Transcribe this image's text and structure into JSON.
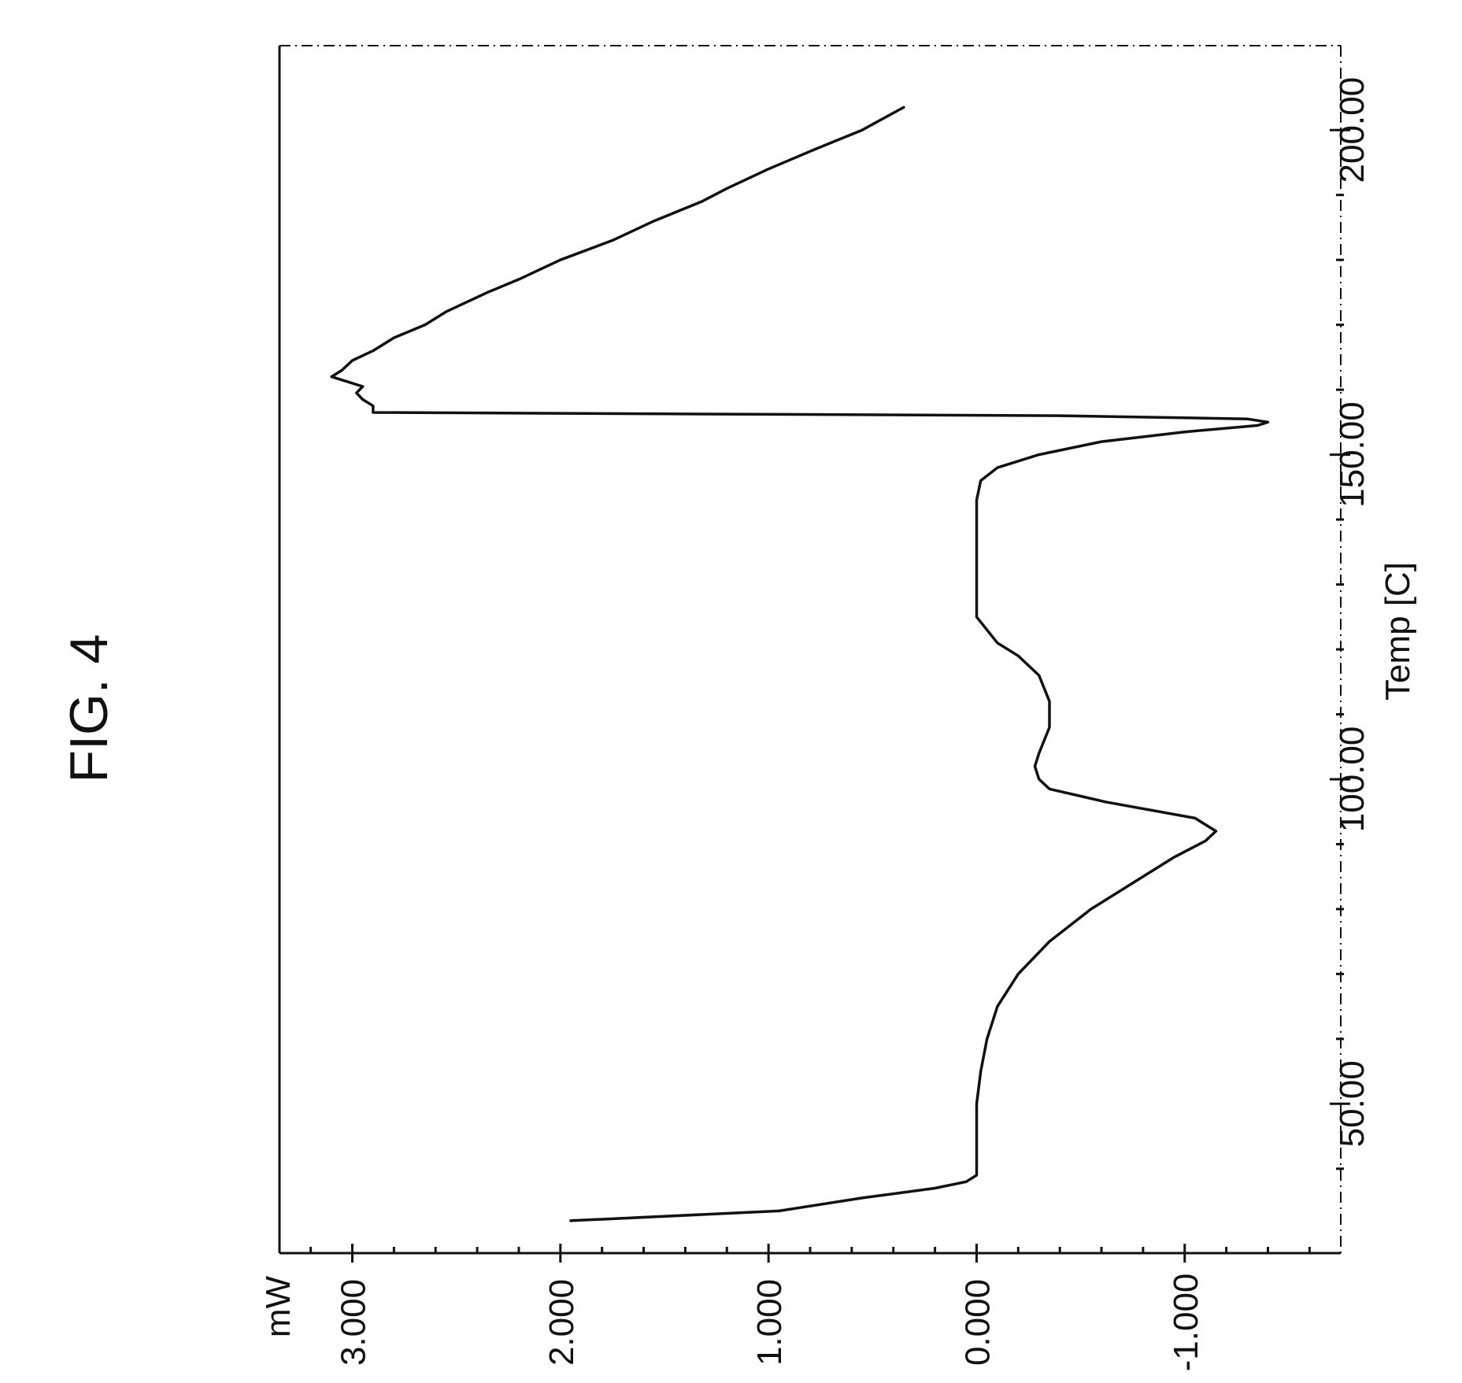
{
  "figure_label": "FIG. 4",
  "chart_data": {
    "type": "line",
    "title": "",
    "xlabel": "Temp [C]",
    "ylabel": "mW",
    "xlim": [
      27,
      213
    ],
    "ylim": [
      -1.75,
      3.35
    ],
    "x_ticks": [
      50,
      100,
      150,
      200
    ],
    "x_tick_labels": [
      "50.00",
      "100.00",
      "150.00",
      "200.00"
    ],
    "x_minor_ticks": [
      40,
      60,
      70,
      80,
      90,
      110,
      120,
      130,
      140,
      160,
      170,
      180,
      190
    ],
    "y_ticks": [
      3,
      2,
      1,
      0,
      -1
    ],
    "y_tick_labels": [
      "3.000",
      "2.000",
      "1.000",
      "0.000",
      "-1.000"
    ],
    "y_minor_ticks": [
      3.2,
      2.8,
      2.6,
      2.4,
      2.2,
      1.8,
      1.6,
      1.4,
      1.2,
      0.8,
      0.6,
      0.4,
      0.2,
      -0.2,
      -0.4,
      -0.6,
      -0.8,
      -1.2,
      -1.4,
      -1.6
    ],
    "grid": false,
    "legend": "none",
    "series": [
      {
        "name": "",
        "x": [
          32.0,
          33.5,
          35.5,
          37.0,
          38.0,
          39.0,
          45.0,
          50.0,
          55.0,
          60.0,
          65.0,
          70.0,
          75.0,
          80.0,
          84.0,
          88.0,
          90.5,
          92.0,
          94.0,
          96.5,
          98.5,
          100.0,
          102.0,
          104.0,
          108.0,
          112.0,
          116.0,
          119.0,
          121.0,
          123.0,
          125.0,
          127.0,
          132.0,
          138.0,
          143.0,
          146.0,
          148.0,
          150.0,
          152.0,
          153.5,
          154.5,
          155.0,
          155.5,
          156.0,
          156.5,
          157.5,
          158.5,
          159.5,
          160.5,
          162.0,
          163.0,
          164.5,
          166.0,
          168.0,
          170.0,
          172.0,
          175.0,
          177.0,
          180.0,
          183.0,
          186.0,
          189.0,
          191.0,
          194.0,
          197.0,
          200.0,
          203.5
        ],
        "y": [
          1.95,
          0.95,
          0.55,
          0.2,
          0.05,
          0.0,
          0.0,
          0.0,
          -0.02,
          -0.05,
          -0.1,
          -0.2,
          -0.35,
          -0.55,
          -0.75,
          -0.95,
          -1.1,
          -1.15,
          -1.05,
          -0.62,
          -0.35,
          -0.3,
          -0.28,
          -0.3,
          -0.35,
          -0.35,
          -0.3,
          -0.2,
          -0.1,
          -0.05,
          0.0,
          0.0,
          0.0,
          0.0,
          0.0,
          -0.02,
          -0.1,
          -0.3,
          -0.6,
          -1.0,
          -1.35,
          -1.4,
          -1.3,
          -0.4,
          2.9,
          2.9,
          2.95,
          2.98,
          2.95,
          3.1,
          3.05,
          3.0,
          2.9,
          2.8,
          2.65,
          2.55,
          2.35,
          2.2,
          2.0,
          1.75,
          1.55,
          1.32,
          1.2,
          1.0,
          0.78,
          0.55,
          0.35
        ]
      }
    ]
  }
}
